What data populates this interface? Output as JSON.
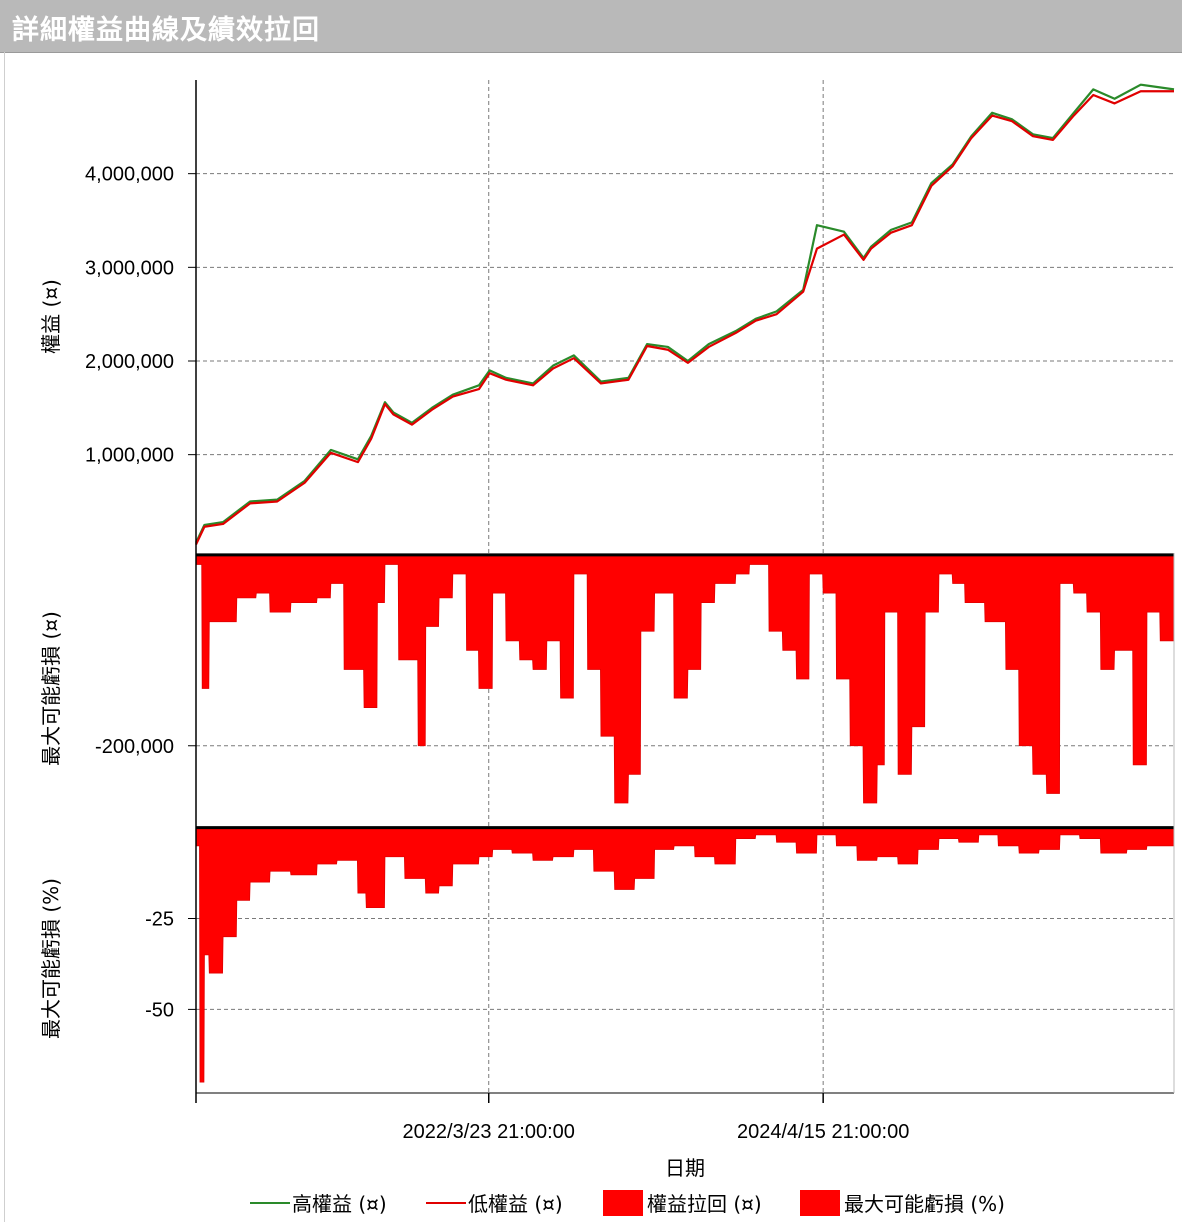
{
  "window": {
    "title": "詳細權益曲線及績效拉回"
  },
  "colors": {
    "high": "#2a8a2a",
    "low": "#e00000",
    "fill": "#ff0000",
    "grid": "#7a7a7a"
  },
  "chart_data": [
    {
      "type": "line",
      "ylabel": "權益 (¤)",
      "ylim": [
        -50000,
        5000000
      ],
      "yticks": [
        {
          "value": 1000000,
          "label": "1,000,000"
        },
        {
          "value": 2000000,
          "label": "2,000,000"
        },
        {
          "value": 3000000,
          "label": "3,000,000"
        },
        {
          "value": 4000000,
          "label": "4,000,000"
        }
      ],
      "xlim": [
        "2020-06-01",
        "2026-06-15"
      ],
      "series": [
        {
          "name": "高權益 (¤)",
          "x": [
            "2020-06-01",
            "2020-06-20",
            "2020-08-01",
            "2020-10-01",
            "2020-12-01",
            "2021-02-01",
            "2021-04-01",
            "2021-06-01",
            "2021-07-01",
            "2021-08-01",
            "2021-08-20",
            "2021-10-01",
            "2021-11-15",
            "2022-01-01",
            "2022-03-01",
            "2022-03-25",
            "2022-05-01",
            "2022-07-01",
            "2022-08-15",
            "2022-10-01",
            "2022-12-01",
            "2023-02-01",
            "2023-03-15",
            "2023-05-01",
            "2023-06-15",
            "2023-08-01",
            "2023-10-01",
            "2023-11-15",
            "2024-01-01",
            "2024-03-01",
            "2024-04-01",
            "2024-06-01",
            "2024-07-15",
            "2024-08-01",
            "2024-09-15",
            "2024-11-01",
            "2024-12-15",
            "2025-02-01",
            "2025-03-15",
            "2025-05-01",
            "2025-06-15",
            "2025-08-01",
            "2025-09-15",
            "2025-11-01",
            "2025-12-15",
            "2026-02-01",
            "2026-04-01",
            "2026-06-15"
          ],
          "values": [
            60000,
            250000,
            280000,
            500000,
            520000,
            720000,
            1050000,
            950000,
            1200000,
            1560000,
            1450000,
            1340000,
            1500000,
            1640000,
            1740000,
            1900000,
            1820000,
            1760000,
            1950000,
            2060000,
            1780000,
            1820000,
            2180000,
            2150000,
            2000000,
            2180000,
            2320000,
            2450000,
            2530000,
            2760000,
            3450000,
            3380000,
            3100000,
            3220000,
            3400000,
            3480000,
            3900000,
            4100000,
            4400000,
            4650000,
            4580000,
            4420000,
            4380000,
            4650000,
            4900000,
            4800000,
            4950000,
            4900000
          ]
        },
        {
          "name": "低權益 (¤)",
          "x": [
            "2020-06-01",
            "2020-06-20",
            "2020-08-01",
            "2020-10-01",
            "2020-12-01",
            "2021-02-01",
            "2021-04-01",
            "2021-06-01",
            "2021-07-01",
            "2021-08-01",
            "2021-08-20",
            "2021-10-01",
            "2021-11-15",
            "2022-01-01",
            "2022-03-01",
            "2022-03-25",
            "2022-05-01",
            "2022-07-01",
            "2022-08-15",
            "2022-10-01",
            "2022-12-01",
            "2023-02-01",
            "2023-03-15",
            "2023-05-01",
            "2023-06-15",
            "2023-08-01",
            "2023-10-01",
            "2023-11-15",
            "2024-01-01",
            "2024-03-01",
            "2024-04-01",
            "2024-06-01",
            "2024-07-15",
            "2024-08-01",
            "2024-09-15",
            "2024-11-01",
            "2024-12-15",
            "2025-02-01",
            "2025-03-15",
            "2025-05-01",
            "2025-06-15",
            "2025-08-01",
            "2025-09-15",
            "2025-11-01",
            "2025-12-15",
            "2026-02-01",
            "2026-04-01",
            "2026-06-15"
          ],
          "values": [
            40000,
            230000,
            260000,
            480000,
            500000,
            700000,
            1020000,
            920000,
            1170000,
            1540000,
            1430000,
            1320000,
            1480000,
            1620000,
            1700000,
            1870000,
            1800000,
            1740000,
            1920000,
            2030000,
            1760000,
            1800000,
            2160000,
            2120000,
            1980000,
            2150000,
            2300000,
            2430000,
            2500000,
            2740000,
            3200000,
            3350000,
            3080000,
            3200000,
            3370000,
            3450000,
            3870000,
            4080000,
            4380000,
            4620000,
            4560000,
            4400000,
            4360000,
            4620000,
            4840000,
            4750000,
            4880000,
            4880000
          ]
        }
      ]
    },
    {
      "type": "area",
      "ylabel": "最大可能虧損 (¤)",
      "ylim": [
        -282000,
        2000
      ],
      "yticks": [
        {
          "value": -200000,
          "label": "-200,000"
        }
      ],
      "series": [
        {
          "name": "權益拉回 (¤)",
          "x": [
            "2020-06-01",
            "2020-06-15",
            "2020-07-01",
            "2020-09-01",
            "2020-10-15",
            "2020-11-15",
            "2021-01-01",
            "2021-03-01",
            "2021-04-01",
            "2021-05-01",
            "2021-06-15",
            "2021-07-15",
            "2021-08-01",
            "2021-09-01",
            "2021-10-15",
            "2021-11-01",
            "2021-12-01",
            "2022-01-01",
            "2022-02-01",
            "2022-03-01",
            "2022-04-01",
            "2022-05-01",
            "2022-06-01",
            "2022-07-01",
            "2022-08-01",
            "2022-09-01",
            "2022-10-01",
            "2022-11-01",
            "2022-12-01",
            "2023-01-01",
            "2023-02-01",
            "2023-03-01",
            "2023-04-01",
            "2023-05-15",
            "2023-06-15",
            "2023-07-15",
            "2023-08-15",
            "2023-10-01",
            "2023-11-01",
            "2023-12-15",
            "2024-01-15",
            "2024-02-15",
            "2024-03-15",
            "2024-04-15",
            "2024-05-15",
            "2024-06-15",
            "2024-07-15",
            "2024-08-15",
            "2024-09-01",
            "2024-10-01",
            "2024-11-01",
            "2024-12-01",
            "2025-01-01",
            "2025-02-01",
            "2025-03-01",
            "2025-04-15",
            "2025-06-01",
            "2025-07-01",
            "2025-08-01",
            "2025-09-01",
            "2025-10-01",
            "2025-11-01",
            "2025-12-01",
            "2026-01-01",
            "2026-02-01",
            "2026-03-15",
            "2026-04-15",
            "2026-05-15",
            "2026-06-15"
          ],
          "values": [
            -10000,
            -140000,
            -70000,
            -45000,
            -40000,
            -60000,
            -50000,
            -45000,
            -30000,
            -120000,
            -160000,
            -50000,
            -10000,
            -110000,
            -200000,
            -75000,
            -45000,
            -20000,
            -100000,
            -140000,
            -40000,
            -90000,
            -110000,
            -120000,
            -90000,
            -150000,
            -20000,
            -120000,
            -190000,
            -260000,
            -230000,
            -80000,
            -40000,
            -150000,
            -120000,
            -50000,
            -30000,
            -20000,
            -10000,
            -80000,
            -100000,
            -130000,
            -20000,
            -40000,
            -130000,
            -200000,
            -260000,
            -220000,
            -60000,
            -230000,
            -180000,
            -60000,
            -20000,
            -30000,
            -50000,
            -70000,
            -120000,
            -200000,
            -230000,
            -250000,
            -30000,
            -40000,
            -60000,
            -120000,
            -100000,
            -220000,
            -60000,
            -90000,
            -40000
          ]
        }
      ]
    },
    {
      "type": "area",
      "ylabel": "最大可能虧損 (%)",
      "ylim": [
        -73,
        1
      ],
      "yticks": [
        {
          "value": -25,
          "label": "-25"
        },
        {
          "value": -50,
          "label": "-50"
        }
      ],
      "series": [
        {
          "name": "最大可能虧損 (%)",
          "x": [
            "2020-06-01",
            "2020-06-10",
            "2020-06-20",
            "2020-07-01",
            "2020-08-01",
            "2020-09-01",
            "2020-10-01",
            "2020-11-15",
            "2021-01-01",
            "2021-03-01",
            "2021-04-15",
            "2021-06-01",
            "2021-06-20",
            "2021-08-01",
            "2021-09-15",
            "2021-11-01",
            "2021-12-01",
            "2022-01-01",
            "2022-03-01",
            "2022-04-01",
            "2022-05-15",
            "2022-07-01",
            "2022-08-15",
            "2022-10-01",
            "2022-11-15",
            "2023-01-01",
            "2023-02-15",
            "2023-04-01",
            "2023-05-15",
            "2023-07-01",
            "2023-08-15",
            "2023-10-01",
            "2023-11-15",
            "2024-01-01",
            "2024-02-15",
            "2024-04-01",
            "2024-05-15",
            "2024-07-01",
            "2024-08-15",
            "2024-10-01",
            "2024-11-15",
            "2025-01-01",
            "2025-02-15",
            "2025-04-01",
            "2025-05-15",
            "2025-07-01",
            "2025-08-15",
            "2025-10-01",
            "2025-11-15",
            "2026-01-01",
            "2026-03-01",
            "2026-04-15",
            "2026-06-15"
          ],
          "values": [
            -5,
            -70,
            -35,
            -40,
            -30,
            -20,
            -15,
            -12,
            -13,
            -10,
            -9,
            -18,
            -22,
            -8,
            -14,
            -18,
            -16,
            -10,
            -8,
            -6,
            -7,
            -9,
            -8,
            -6,
            -12,
            -17,
            -14,
            -6,
            -5,
            -8,
            -10,
            -3,
            -2,
            -4,
            -7,
            -2,
            -5,
            -9,
            -8,
            -10,
            -6,
            -3,
            -4,
            -2,
            -5,
            -7,
            -6,
            -2,
            -3,
            -7,
            -6,
            -5,
            -5
          ]
        }
      ]
    }
  ],
  "x_axis": {
    "label": "日期",
    "ticks": [
      {
        "value": "2020-06-01",
        "label": ""
      },
      {
        "value": "2022-03-23",
        "label": "2022/3/23 21:00:00"
      },
      {
        "value": "2024-04-15",
        "label": "2024/4/15 21:00:00"
      }
    ]
  },
  "legend": {
    "placement": "bottom",
    "items": [
      {
        "label": "高權益 (¤)",
        "kind": "line",
        "color": "#2a8a2a"
      },
      {
        "label": "低權益 (¤)",
        "kind": "line",
        "color": "#e00000"
      },
      {
        "label": "權益拉回 (¤)",
        "kind": "box",
        "color": "#ff0000"
      },
      {
        "label": "最大可能虧損 (%)",
        "kind": "box",
        "color": "#ff0000"
      }
    ]
  }
}
